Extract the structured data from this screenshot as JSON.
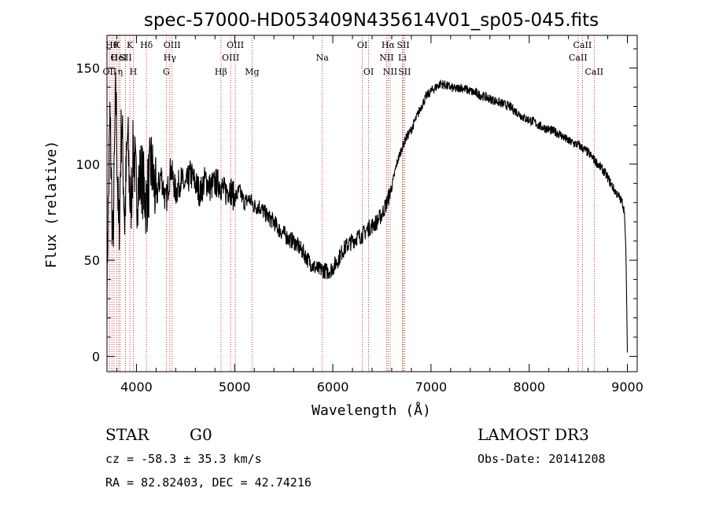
{
  "chart_data": {
    "type": "line",
    "title": "spec-57000-HD053409N435614V01_sp05-045.fits",
    "xlabel": "Wavelength (Å)",
    "ylabel": "Flux (relative)",
    "xlim": [
      3700,
      9100
    ],
    "ylim": [
      -8,
      167
    ],
    "xticks": [
      4000,
      5000,
      6000,
      7000,
      8000,
      9000
    ],
    "yticks": [
      0,
      50,
      100,
      150
    ],
    "series": [
      {
        "name": "flux",
        "x": [
          3700,
          3730,
          3760,
          3790,
          3820,
          3850,
          3880,
          3910,
          3940,
          3970,
          4000,
          4050,
          4100,
          4150,
          4200,
          4250,
          4300,
          4350,
          4400,
          4450,
          4500,
          4550,
          4600,
          4650,
          4700,
          4750,
          4800,
          4850,
          4900,
          4950,
          5000,
          5050,
          5100,
          5150,
          5200,
          5250,
          5300,
          5350,
          5400,
          5450,
          5500,
          5550,
          5600,
          5650,
          5700,
          5750,
          5800,
          5850,
          5900,
          5950,
          6000,
          6050,
          6100,
          6150,
          6200,
          6250,
          6300,
          6350,
          6400,
          6450,
          6500,
          6550,
          6600,
          6650,
          6700,
          6750,
          6800,
          6850,
          6900,
          6950,
          7000,
          7050,
          7100,
          7150,
          7200,
          7250,
          7300,
          7350,
          7400,
          7450,
          7500,
          7550,
          7600,
          7650,
          7700,
          7750,
          7800,
          7850,
          7900,
          7950,
          8000,
          8050,
          8100,
          8150,
          8200,
          8250,
          8300,
          8350,
          8400,
          8450,
          8500,
          8550,
          8600,
          8650,
          8700,
          8750,
          8800,
          8850,
          8900,
          8950,
          8970,
          8985,
          8995,
          9000
        ],
        "y": [
          40,
          125,
          55,
          140,
          60,
          125,
          70,
          115,
          75,
          110,
          85,
          95,
          80,
          100,
          82,
          95,
          80,
          98,
          85,
          92,
          88,
          95,
          90,
          85,
          92,
          88,
          90,
          90,
          85,
          88,
          82,
          86,
          80,
          82,
          78,
          78,
          75,
          72,
          70,
          66,
          64,
          61,
          60,
          57,
          54,
          50,
          47,
          45,
          45,
          44,
          46,
          50,
          55,
          58,
          60,
          62,
          63,
          66,
          68,
          70,
          74,
          80,
          88,
          100,
          108,
          114,
          118,
          124,
          130,
          135,
          138,
          140,
          142,
          141,
          140,
          139,
          140,
          139,
          138,
          137,
          136,
          135,
          134,
          133,
          132,
          131,
          130,
          128,
          126,
          124,
          123,
          122,
          120,
          119,
          118,
          117,
          116,
          114,
          112,
          111,
          110,
          108,
          106,
          103,
          100,
          97,
          93,
          88,
          84,
          80,
          75,
          55,
          20,
          2
        ]
      }
    ],
    "lines": [
      {
        "wave": 3727,
        "row": 2,
        "label": "OII"
      },
      {
        "wave": 3750,
        "row": 0,
        "label": "Hθ"
      },
      {
        "wave": 3771,
        "row": 1,
        "label": "O"
      },
      {
        "wave": 3798,
        "row": 0,
        "label": "K"
      },
      {
        "wave": 3820,
        "row": 1,
        "label": "HeI"
      },
      {
        "wave": 3835,
        "row": 2,
        "label": "η"
      },
      {
        "wave": 3889,
        "row": 1,
        "label": "SII"
      },
      {
        "wave": 3933,
        "row": 0,
        "label": "K"
      },
      {
        "wave": 3968,
        "row": 2,
        "label": "H"
      },
      {
        "wave": 4102,
        "row": 0,
        "label": "Hδ"
      },
      {
        "wave": 4340,
        "row": 1,
        "label": "Hγ"
      },
      {
        "wave": 4304,
        "row": 2,
        "label": "G"
      },
      {
        "wave": 4363,
        "row": 0,
        "label": "OIII"
      },
      {
        "wave": 4861,
        "row": 2,
        "label": "Hβ"
      },
      {
        "wave": 4959,
        "row": 1,
        "label": "OIII"
      },
      {
        "wave": 5007,
        "row": 0,
        "label": "OIII"
      },
      {
        "wave": 5177,
        "row": 2,
        "label": "Mg"
      },
      {
        "wave": 5893,
        "row": 1,
        "label": "Na"
      },
      {
        "wave": 6300,
        "row": 0,
        "label": "OI"
      },
      {
        "wave": 6364,
        "row": 2,
        "label": "OI"
      },
      {
        "wave": 6548,
        "row": 1,
        "label": "NII"
      },
      {
        "wave": 6563,
        "row": 0,
        "label": "Hα"
      },
      {
        "wave": 6584,
        "row": 2,
        "label": "NII"
      },
      {
        "wave": 6708,
        "row": 1,
        "label": "Li"
      },
      {
        "wave": 6717,
        "row": 0,
        "label": "SII"
      },
      {
        "wave": 6731,
        "row": 2,
        "label": "SII"
      },
      {
        "wave": 8498,
        "row": 1,
        "label": "CaII"
      },
      {
        "wave": 8542,
        "row": 0,
        "label": "CaII"
      },
      {
        "wave": 8662,
        "row": 2,
        "label": "CaII"
      }
    ]
  },
  "info": {
    "class": "STAR",
    "subclass": "G0",
    "cz": "cz = -58.3 ± 35.3 km/s",
    "coords": "RA =  82.82403, DEC =  42.74216",
    "survey": "LAMOST DR3",
    "obs_date": "Obs-Date: 20141208"
  }
}
